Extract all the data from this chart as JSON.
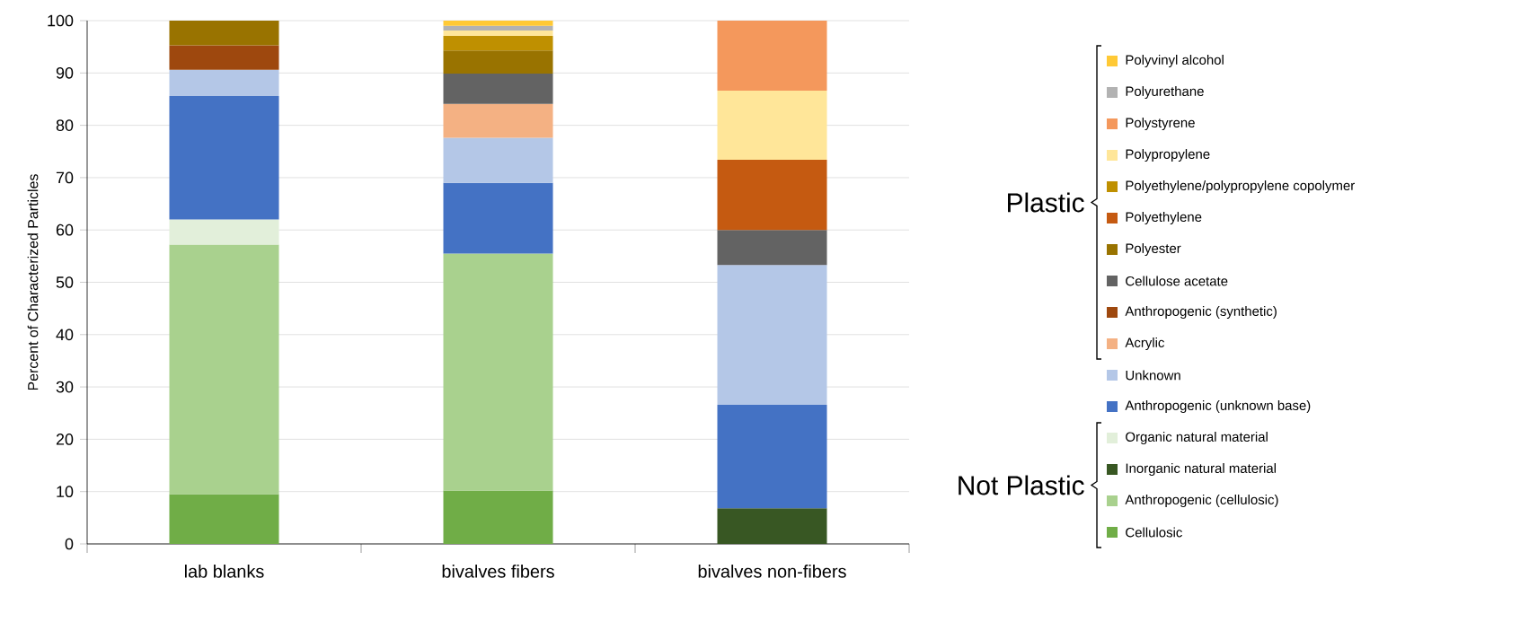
{
  "chart_data": {
    "type": "bar",
    "stacked": true,
    "ylabel": "Percent of Characterized Particles",
    "categories": [
      "lab blanks",
      "bivalves fibers",
      "bivalves non-fibers"
    ],
    "ylim": [
      0,
      100
    ],
    "yticks": [
      0,
      10,
      20,
      30,
      40,
      50,
      60,
      70,
      80,
      90,
      100
    ],
    "grid": "y",
    "legend": "right",
    "annotations": [
      "Plastic",
      "Not Plastic"
    ],
    "series": [
      {
        "name": "Cellulosic",
        "color": "#70ad47",
        "values": [
          9.5,
          10.2,
          null
        ]
      },
      {
        "name": "Anthropogenic (cellulosic)",
        "color": "#a9d18e",
        "values": [
          47.7,
          45.3,
          null
        ]
      },
      {
        "name": "Inorganic natural material",
        "color": "#385723",
        "values": [
          null,
          null,
          6.8
        ]
      },
      {
        "name": "Organic natural material",
        "color": "#e2efda",
        "values": [
          4.8,
          null,
          null
        ]
      },
      {
        "name": "Anthropogenic (unknown base)",
        "color": "#4472c4",
        "values": [
          23.6,
          13.5,
          19.8
        ]
      },
      {
        "name": "Unknown",
        "color": "#b4c7e7",
        "values": [
          5.0,
          8.6,
          26.7
        ]
      },
      {
        "name": "Acrylic",
        "color": "#f4b183",
        "values": [
          null,
          6.5,
          null
        ]
      },
      {
        "name": "Anthropogenic (synthetic)",
        "color": "#9e480e",
        "values": [
          4.7,
          null,
          null
        ]
      },
      {
        "name": "Cellulose acetate",
        "color": "#636363",
        "values": [
          null,
          5.8,
          6.7
        ]
      },
      {
        "name": "Polyester",
        "color": "#997300",
        "values": [
          4.7,
          4.4,
          null
        ]
      },
      {
        "name": "Polyethylene",
        "color": "#c55a11",
        "values": [
          null,
          null,
          13.4
        ]
      },
      {
        "name": "Polyethylene/polypropylene copolymer",
        "color": "#bf9000",
        "values": [
          null,
          2.8,
          null
        ]
      },
      {
        "name": "Polypropylene",
        "color": "#ffe699",
        "values": [
          null,
          1.0,
          13.2
        ]
      },
      {
        "name": "Polystyrene",
        "color": "#f4985c",
        "values": [
          null,
          null,
          13.4
        ]
      },
      {
        "name": "Polyurethane",
        "color": "#b2b2b2",
        "values": [
          null,
          0.9,
          null
        ]
      },
      {
        "name": "Polyvinyl alcohol",
        "color": "#ffc935",
        "values": [
          null,
          1.0,
          null
        ]
      }
    ]
  }
}
